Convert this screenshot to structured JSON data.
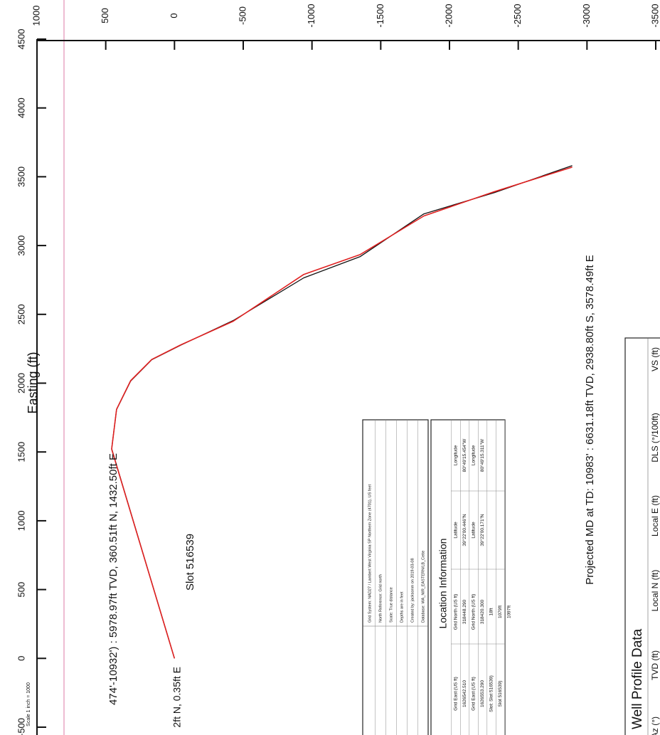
{
  "chart_data": {
    "type": "line",
    "y_label": "Easting (ft)",
    "scale_note": "Scale 1 inch = 1000",
    "x": [
      0,
      457,
      421,
      319,
      165,
      -41,
      -427,
      -940,
      -1351,
      -1814,
      -2328,
      -2893
    ],
    "series": [
      {
        "color": "#111111",
        "values": [
          0,
          1524,
          1808,
          2015,
          2170,
          2274,
          2455,
          2765,
          2920,
          3230,
          3385,
          3581
        ]
      },
      {
        "color": "#e02020",
        "values": [
          0,
          1520,
          1810,
          2018,
          2172,
          2276,
          2450,
          2790,
          2935,
          3215,
          3392,
          3570
        ]
      }
    ],
    "xlim": [
      1000,
      -3500
    ],
    "xticks": [
      1000,
      500,
      0,
      -500,
      -1000,
      -1500,
      -2000,
      -2500,
      -3000,
      -3500
    ],
    "ylim": [
      -500,
      4500
    ],
    "yticks": [
      4500,
      4000,
      3500,
      3000,
      2500,
      2000,
      1500,
      1000,
      500,
      0,
      -500
    ],
    "annotations": [
      "Slot 516539",
      "Projected MD at TD: 10983' : 6631.18ft TVD, 2938.80ft S, 3578.49ft E",
      "474'-10932') : 5978.97ft TVD, 360.51ft N, 1432.50ft E",
      "2ft N, 0.35ft E"
    ]
  },
  "grid_table": {
    "rows": [
      "Grid System: NAD27 / Lambert West Virginia SP Northern Zone (4701), US feet",
      "North Reference: Grid north",
      "Scale: True distance",
      "Depths are in feet",
      "Created by: jacksonm on 2019-03-08",
      "Database: WA_NIR_EASTERN/LB_Cette"
    ]
  },
  "location_table": {
    "title": "Location Information",
    "rows": [
      [
        "Grid East (US ft)",
        "Grid North (US ft)",
        "Latitude",
        "Longitude"
      ],
      [
        "1626542.510",
        "318448.290",
        "39°22'00.446\"N",
        "80°49'15.454\"W"
      ],
      [
        "Grid East (US ft)",
        "Grid North (US ft)",
        "Latitude",
        "Longitude"
      ],
      [
        "1626553.290",
        "318420.300",
        "39°22'00.171\"N",
        "80°49'15.311\"W"
      ],
      [
        "Slot: Slot 516539)",
        "18ft",
        "",
        ""
      ],
      [
        "Slot 516539)",
        "1079ft",
        "",
        ""
      ],
      [
        "",
        "1097ft",
        "",
        ""
      ]
    ]
  },
  "well_profile_table": {
    "title": "Well Profile Data",
    "headers": [
      "Az (°)",
      "TVD (ft)",
      "Local N (ft)",
      "Local E (ft)",
      "DLS (°/100ft)",
      "VS (ft)"
    ]
  }
}
